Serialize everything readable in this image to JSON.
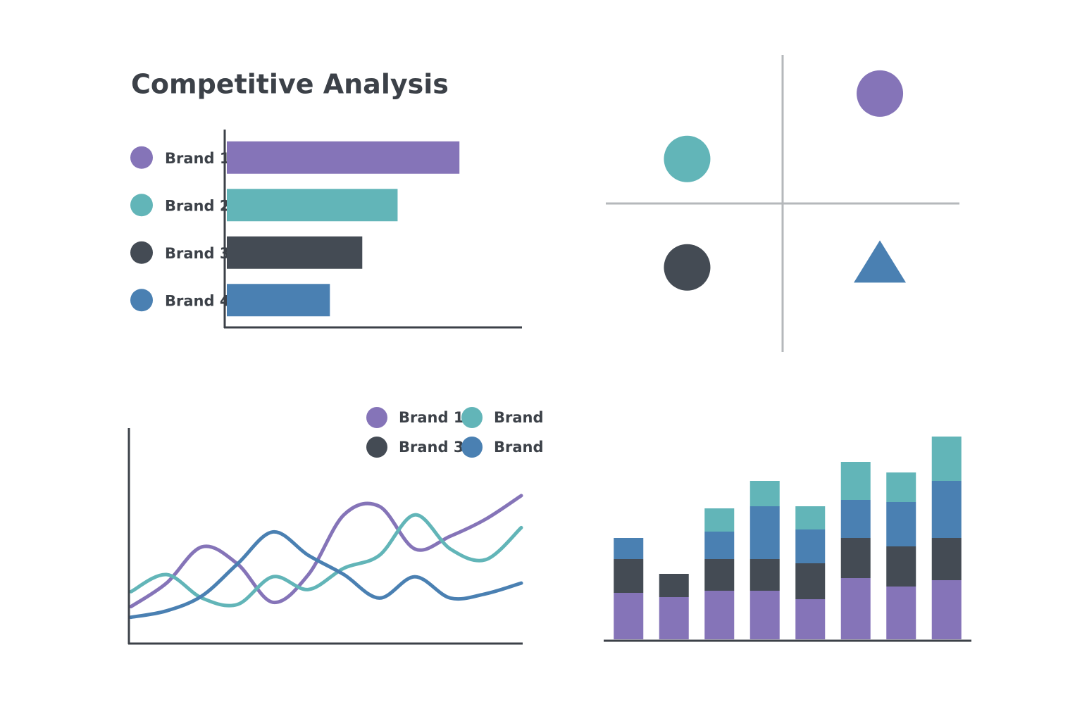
{
  "chart_data": [
    {
      "type": "hbar",
      "title": "Competitive Analysis",
      "categories": [
        "Brand 1",
        "Brand 2",
        "Brand 3",
        "Brand 4"
      ],
      "values": [
        79,
        58,
        46,
        35
      ],
      "colors": [
        "#8574b8",
        "#62b5b8",
        "#444b54",
        "#4a80b2"
      ],
      "xlim": [
        0,
        100
      ]
    },
    {
      "type": "scatter",
      "x": [
        0.55,
        -0.54,
        -0.54,
        0.55
      ],
      "y": [
        0.74,
        0.3,
        -0.43,
        -0.4
      ],
      "colors": [
        "#8574b8",
        "#62b5b8",
        "#444b54",
        "#4a80b2"
      ],
      "markers": [
        "circle",
        "circle",
        "circle",
        "triangle"
      ],
      "xlim": [
        -1,
        1
      ],
      "ylim": [
        -1,
        1
      ]
    },
    {
      "type": "line",
      "x": [
        0,
        1,
        2,
        3,
        4,
        5,
        6,
        7,
        8,
        9,
        10,
        11
      ],
      "series": [
        {
          "name": "Brand 1",
          "color": "#8574b8",
          "values": [
            17,
            28,
            45,
            37,
            19,
            32,
            60,
            64,
            44,
            50,
            58,
            69
          ]
        },
        {
          "name": "Brand",
          "color": "#62b5b8",
          "values": [
            24,
            32,
            21,
            18,
            31,
            25,
            35,
            41,
            60,
            44,
            39,
            54
          ]
        },
        {
          "name": "Brand 3",
          "color": "#444b54",
          "values": [
            null,
            null,
            null,
            null,
            null,
            null,
            null,
            null,
            null,
            null,
            null,
            null
          ]
        },
        {
          "name": "Brand",
          "color": "#4a80b2",
          "values": [
            12,
            15,
            22,
            37,
            52,
            41,
            32,
            21,
            31,
            21,
            23,
            28
          ]
        }
      ],
      "xlim": [
        0,
        11
      ],
      "ylim": [
        0,
        100
      ]
    },
    {
      "type": "stacked_bar",
      "categories": [
        null,
        null,
        null,
        null,
        null,
        null,
        null,
        null
      ],
      "series": [
        {
          "color": "#8574b8",
          "values": [
            22,
            20,
            23,
            23,
            19,
            29,
            25,
            28
          ]
        },
        {
          "color": "#444b54",
          "values": [
            16,
            11,
            15,
            15,
            17,
            19,
            19,
            20
          ]
        },
        {
          "color": "#4a80b2",
          "values": [
            10,
            0,
            13,
            25,
            16,
            18,
            21,
            27
          ]
        },
        {
          "color": "#62b5b8",
          "values": [
            0,
            0,
            11,
            12,
            11,
            18,
            14,
            21
          ]
        }
      ],
      "ylim": [
        0,
        100
      ]
    }
  ]
}
